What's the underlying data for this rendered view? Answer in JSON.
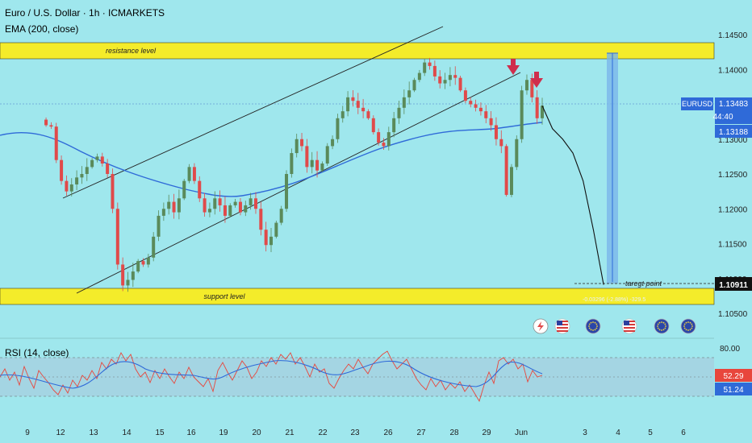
{
  "header": {
    "symbol_line": "Euro / U.S. Dollar · 1h · ICMARKETS",
    "ema_label": "EMA (200, close)",
    "rsi_label": "RSI (14, close)"
  },
  "colors": {
    "background": "#9fe7ed",
    "zone": "#f4ec2a",
    "ema": "#2f6ad8",
    "candle_up": "#5a8a5a",
    "candle_down": "#e04a4a",
    "rsi_line": "#e8463c",
    "rsi_ma": "#2f6ad8",
    "arrow": "#cf2e4c",
    "measure": "#7bb6ea"
  },
  "annotations": {
    "resistance": "resistance level",
    "support": "support level",
    "target": "taregt point",
    "measure_text": "-0.03296 (-2.88%) -329.5"
  },
  "price_badges": {
    "symbol": "EURUSD",
    "last": "1.13483",
    "countdown": "44:40",
    "ema_value": "1.13188",
    "target_value": "1.10911"
  },
  "rsi_badges": {
    "rsi": "52.29",
    "rsi_ma": "51.24"
  },
  "events": [
    {
      "icon": "lightning-icon"
    },
    {
      "icon": "us-flag-icon"
    },
    {
      "icon": "eu-flag-icon"
    },
    {
      "icon": "us-flag-icon"
    },
    {
      "icon": "eu-flag-icon"
    },
    {
      "icon": "eu-flag-icon"
    }
  ],
  "chart_data": {
    "type": "candlestick",
    "symbol": "EURUSD",
    "timeframe": "1h",
    "price_ticks": [
      "1.14500",
      "1.14000",
      "1.13500",
      "1.13000",
      "1.12500",
      "1.12000",
      "1.11500",
      "1.11000",
      "1.10500"
    ],
    "rsi_ticks": [
      "80.00"
    ],
    "x_ticks": [
      "9",
      "12",
      "13",
      "14",
      "15",
      "16",
      "19",
      "20",
      "21",
      "22",
      "23",
      "26",
      "27",
      "28",
      "29",
      "Jun",
      "3",
      "4",
      "5",
      "6"
    ],
    "ylim": [
      1.1035,
      1.1482
    ],
    "resistance_zone": [
      1.1413,
      1.1434
    ],
    "support_zone": [
      1.1065,
      1.1082
    ],
    "target_price": 1.10911,
    "last_price": 1.13483,
    "ema_200_value": 1.13188,
    "rsi_value": 52.29,
    "rsi_ma_value": 51.24,
    "close_path": [
      [
        9,
        1.132
      ],
      [
        10,
        1.1318
      ],
      [
        11,
        1.127
      ],
      [
        12,
        1.124
      ],
      [
        13,
        1.1225
      ],
      [
        14,
        1.1235
      ],
      [
        15,
        1.1245
      ],
      [
        16,
        1.125
      ],
      [
        17,
        1.126
      ],
      [
        18,
        1.127
      ],
      [
        19,
        1.1275
      ],
      [
        20,
        1.1265
      ],
      [
        21,
        1.125
      ],
      [
        22,
        1.12
      ],
      [
        23,
        1.112
      ],
      [
        24,
        1.109
      ],
      [
        25,
        1.1098
      ],
      [
        26,
        1.111
      ],
      [
        27,
        1.1125
      ],
      [
        28,
        1.112
      ],
      [
        29,
        1.113
      ],
      [
        30,
        1.116
      ],
      [
        31,
        1.119
      ],
      [
        32,
        1.12
      ],
      [
        33,
        1.121
      ],
      [
        34,
        1.1195
      ],
      [
        35,
        1.1215
      ],
      [
        36,
        1.124
      ],
      [
        37,
        1.126
      ],
      [
        38,
        1.124
      ],
      [
        39,
        1.1215
      ],
      [
        40,
        1.1195
      ],
      [
        41,
        1.12
      ],
      [
        42,
        1.1215
      ],
      [
        43,
        1.1205
      ],
      [
        44,
        1.119
      ],
      [
        45,
        1.1205
      ],
      [
        46,
        1.121
      ],
      [
        47,
        1.1195
      ],
      [
        48,
        1.1205
      ],
      [
        49,
        1.1215
      ],
      [
        50,
        1.12
      ],
      [
        51,
        1.117
      ],
      [
        52,
        1.1148
      ],
      [
        53,
        1.116
      ],
      [
        54,
        1.118
      ],
      [
        55,
        1.12
      ],
      [
        56,
        1.125
      ],
      [
        57,
        1.128
      ],
      [
        58,
        1.13
      ],
      [
        59,
        1.129
      ],
      [
        60,
        1.126
      ],
      [
        61,
        1.127
      ],
      [
        62,
        1.1255
      ],
      [
        63,
        1.1265
      ],
      [
        64,
        1.129
      ],
      [
        65,
        1.13
      ],
      [
        66,
        1.133
      ],
      [
        67,
        1.134
      ],
      [
        68,
        1.136
      ],
      [
        69,
        1.1355
      ],
      [
        70,
        1.1345
      ],
      [
        71,
        1.134
      ],
      [
        72,
        1.133
      ],
      [
        73,
        1.131
      ],
      [
        74,
        1.1295
      ],
      [
        75,
        1.129
      ],
      [
        76,
        1.131
      ],
      [
        77,
        1.133
      ],
      [
        78,
        1.1345
      ],
      [
        79,
        1.136
      ],
      [
        80,
        1.137
      ],
      [
        81,
        1.1385
      ],
      [
        82,
        1.1395
      ],
      [
        83,
        1.141
      ],
      [
        84,
        1.1405
      ],
      [
        85,
        1.139
      ],
      [
        86,
        1.138
      ],
      [
        87,
        1.1385
      ],
      [
        88,
        1.1392
      ],
      [
        89,
        1.1388
      ],
      [
        90,
        1.137
      ],
      [
        91,
        1.1355
      ],
      [
        92,
        1.135
      ],
      [
        93,
        1.1345
      ],
      [
        94,
        1.134
      ],
      [
        95,
        1.133
      ],
      [
        96,
        1.132
      ],
      [
        97,
        1.13
      ],
      [
        98,
        1.129
      ],
      [
        99,
        1.122
      ],
      [
        100,
        1.126
      ],
      [
        101,
        1.13
      ],
      [
        102,
        1.137
      ],
      [
        103,
        1.1385
      ],
      [
        104,
        1.136
      ],
      [
        105,
        1.133
      ],
      [
        106,
        1.1348
      ]
    ],
    "projection_path": [
      [
        106,
        1.1348
      ],
      [
        108,
        1.1315
      ],
      [
        110,
        1.13
      ],
      [
        112,
        1.128
      ],
      [
        114,
        1.124
      ],
      [
        116,
        1.117
      ],
      [
        118,
        1.1091
      ]
    ]
  }
}
